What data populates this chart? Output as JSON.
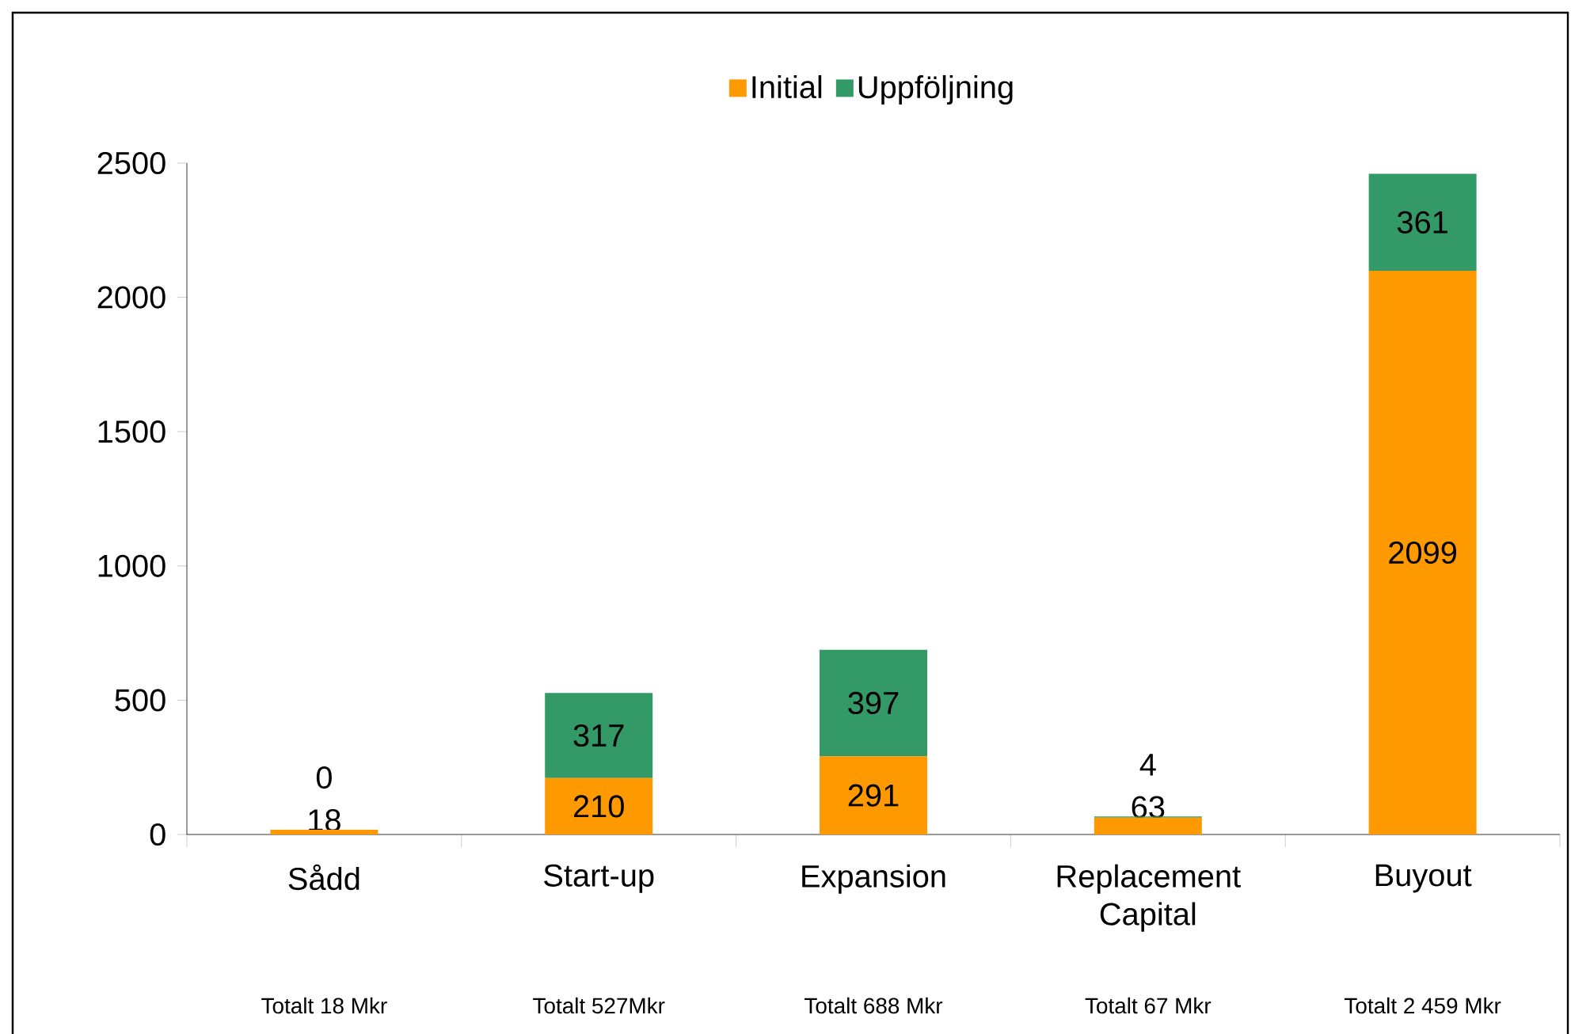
{
  "chart_data": {
    "type": "bar",
    "stacked": true,
    "categories": [
      "Sådd",
      "Start-up",
      "Expansion",
      "Replacement Capital",
      "Buyout"
    ],
    "series": [
      {
        "name": "Initial",
        "color": "#ff9900",
        "values": [
          18,
          210,
          291,
          63,
          2099
        ]
      },
      {
        "name": "Uppföljning",
        "color": "#339966",
        "values": [
          0,
          317,
          397,
          4,
          361
        ]
      }
    ],
    "ylim": [
      0,
      2500
    ],
    "yticks": [
      0,
      500,
      1000,
      1500,
      2000,
      2500
    ],
    "grid": false,
    "legend": "top",
    "data_labels": true,
    "annotations": [
      "Totalt 18 Mkr",
      "Totalt 527Mkr",
      "Totalt 688 Mkr",
      "Totalt 67 Mkr",
      "Totalt 2 459 Mkr"
    ]
  }
}
